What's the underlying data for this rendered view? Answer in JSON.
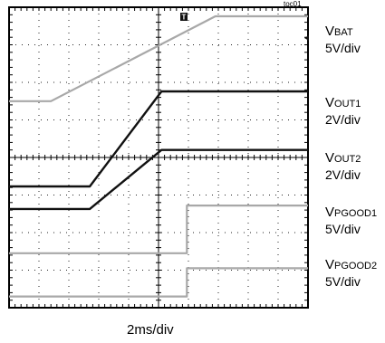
{
  "figure_id": "toc01",
  "time_scale": "2ms/div",
  "colors": {
    "dark_trace": "#111111",
    "light_trace": "#a8a8a8",
    "grid": "#222222"
  },
  "trigger_icon": "trigger-marker-icon",
  "channel_labels": [
    {
      "prefix": "V",
      "sub": "BAT",
      "scale": "5V/div"
    },
    {
      "prefix": "V",
      "sub": "OUT1",
      "scale": "2V/div"
    },
    {
      "prefix": "V",
      "sub": "OUT2",
      "scale": "2V/div"
    },
    {
      "prefix": "V",
      "sub": "PGOOD1",
      "scale": "5V/div"
    },
    {
      "prefix": "V",
      "sub": "PGOOD2",
      "scale": "5V/div"
    }
  ],
  "chart_data": {
    "type": "line",
    "x_unit": "div",
    "y_unit": "div",
    "xlim": [
      0,
      10
    ],
    "ylim": [
      0,
      8
    ],
    "grid": true,
    "series": [
      {
        "name": "VBAT",
        "color": "light",
        "points": [
          [
            0,
            5.5
          ],
          [
            1.4,
            5.5
          ],
          [
            6.9,
            7.76
          ],
          [
            10,
            7.76
          ]
        ]
      },
      {
        "name": "VOUT1",
        "color": "dark",
        "points": [
          [
            0,
            3.23
          ],
          [
            2.7,
            3.23
          ],
          [
            5.1,
            5.76
          ],
          [
            10,
            5.76
          ]
        ]
      },
      {
        "name": "VOUT2",
        "color": "dark",
        "points": [
          [
            0,
            2.63
          ],
          [
            2.7,
            2.63
          ],
          [
            5.1,
            4.2
          ],
          [
            10,
            4.2
          ]
        ]
      },
      {
        "name": "VPGOOD1",
        "color": "light",
        "points": [
          [
            0,
            1.45
          ],
          [
            5.95,
            1.45
          ],
          [
            5.95,
            2.72
          ],
          [
            10,
            2.72
          ]
        ]
      },
      {
        "name": "VPGOOD2",
        "color": "light",
        "points": [
          [
            0,
            0.3
          ],
          [
            5.95,
            0.3
          ],
          [
            5.95,
            1.05
          ],
          [
            10,
            1.05
          ]
        ]
      }
    ]
  }
}
